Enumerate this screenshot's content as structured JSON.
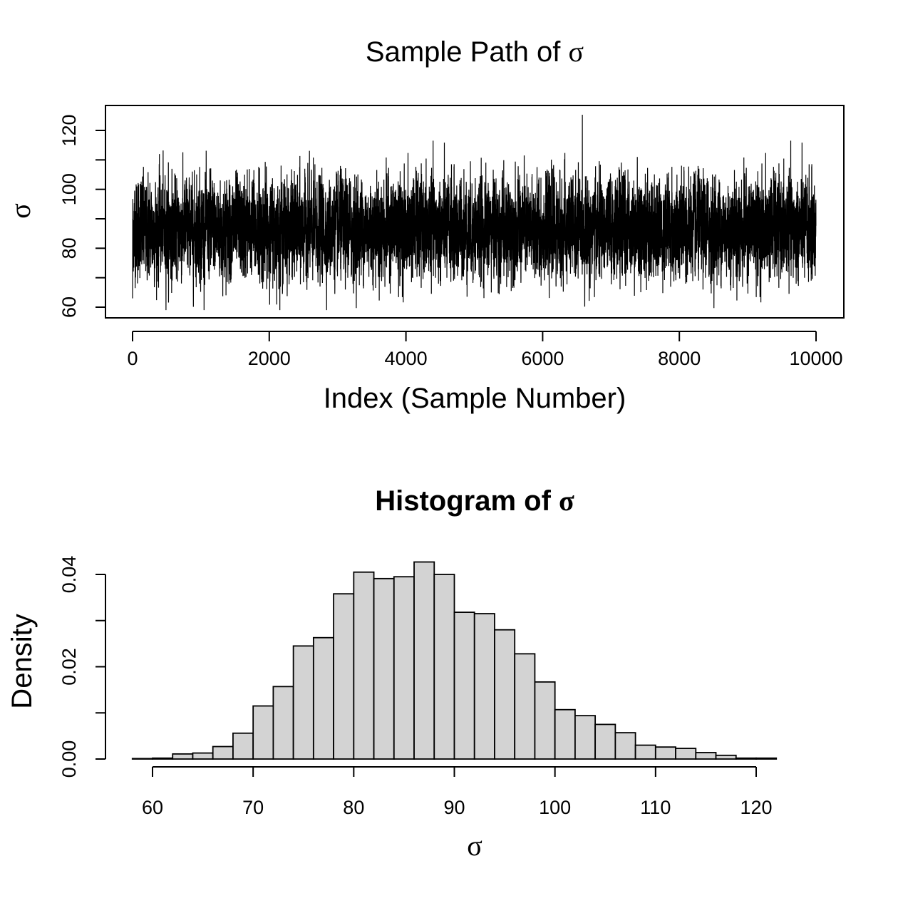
{
  "chart_data": [
    {
      "type": "line",
      "title": "Sample Path of",
      "title_symbol": "σ",
      "xlabel": "Index (Sample Number)",
      "ylabel": "σ",
      "xlim": [
        0,
        10000
      ],
      "ylim": [
        58,
        127
      ],
      "x_ticks": [
        0,
        2000,
        4000,
        6000,
        8000,
        10000
      ],
      "x_tick_labels": [
        "0",
        "2000",
        "4000",
        "6000",
        "8000",
        "10000"
      ],
      "y_ticks": [
        60,
        70,
        80,
        90,
        100,
        110,
        120
      ],
      "y_tick_labels": [
        "60",
        "",
        "80",
        "",
        "100",
        "",
        "120"
      ],
      "n_samples": 10000,
      "mean": 85.5,
      "sd": 8.3,
      "first_value": 63,
      "min_value": 59,
      "max_value": 126,
      "grid": false
    },
    {
      "type": "bar",
      "title": "Histogram of",
      "title_symbol": "σ",
      "xlabel": "σ",
      "ylabel": "Density",
      "xlim": [
        58,
        126
      ],
      "ylim": [
        0,
        0.043
      ],
      "x_ticks": [
        60,
        70,
        80,
        90,
        100,
        110,
        120
      ],
      "x_tick_labels": [
        "60",
        "70",
        "80",
        "90",
        "100",
        "110",
        "120"
      ],
      "y_ticks": [
        0,
        0.01,
        0.02,
        0.03,
        0.04
      ],
      "y_tick_labels": [
        "0.00",
        "",
        "0.02",
        "",
        "0.04"
      ],
      "bin_edges": [
        58,
        60,
        62,
        64,
        66,
        68,
        70,
        72,
        74,
        76,
        78,
        80,
        82,
        84,
        86,
        88,
        90,
        92,
        94,
        96,
        98,
        100,
        102,
        104,
        106,
        108,
        110,
        112,
        114,
        116,
        118,
        120,
        122,
        124,
        126
      ],
      "densities": [
        0.0001,
        0.0002,
        0.0011,
        0.0013,
        0.0027,
        0.0056,
        0.0115,
        0.0157,
        0.0245,
        0.0263,
        0.0358,
        0.0405,
        0.0391,
        0.0395,
        0.0427,
        0.04,
        0.0318,
        0.0315,
        0.028,
        0.0228,
        0.0167,
        0.0107,
        0.0094,
        0.0075,
        0.0057,
        0.003,
        0.0026,
        0.0023,
        0.0014,
        0.0008,
        0.0002,
        0.0002,
        0.0,
        0.0
      ],
      "grid": false
    }
  ]
}
